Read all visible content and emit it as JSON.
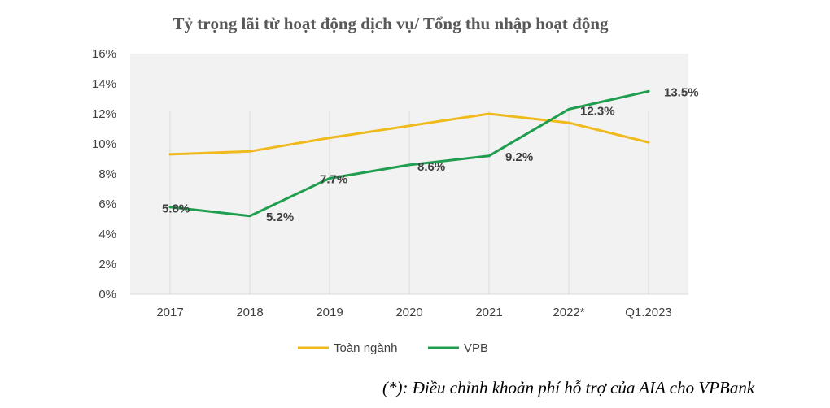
{
  "chart_data": {
    "type": "line",
    "title": "Tỷ trọng lãi từ hoạt động dịch vụ/ Tổng thu nhập hoạt động",
    "categories": [
      "2017",
      "2018",
      "2019",
      "2020",
      "2021",
      "2022*",
      "Q1.2023"
    ],
    "ylim": [
      0,
      16
    ],
    "yticks": [
      "0%",
      "2%",
      "4%",
      "6%",
      "8%",
      "10%",
      "12%",
      "14%",
      "16%"
    ],
    "grid": "vertical",
    "legend_position": "bottom",
    "series": [
      {
        "name": "Toàn ngành",
        "color": "#F0BA1C",
        "values": [
          9.3,
          9.5,
          10.4,
          11.2,
          12.0,
          11.4,
          10.1
        ],
        "labels": []
      },
      {
        "name": "VPB",
        "color": "#1E9E4E",
        "values": [
          5.8,
          5.2,
          7.7,
          8.6,
          9.2,
          12.3,
          13.5
        ],
        "labels": [
          "5.8%",
          "5.2%",
          "7.7%",
          "8.6%",
          "9.2%",
          "12.3%",
          "13.5%"
        ]
      }
    ],
    "footnote": "(*): Điều chỉnh khoản phí hỗ trợ của AIA cho VPBank"
  }
}
